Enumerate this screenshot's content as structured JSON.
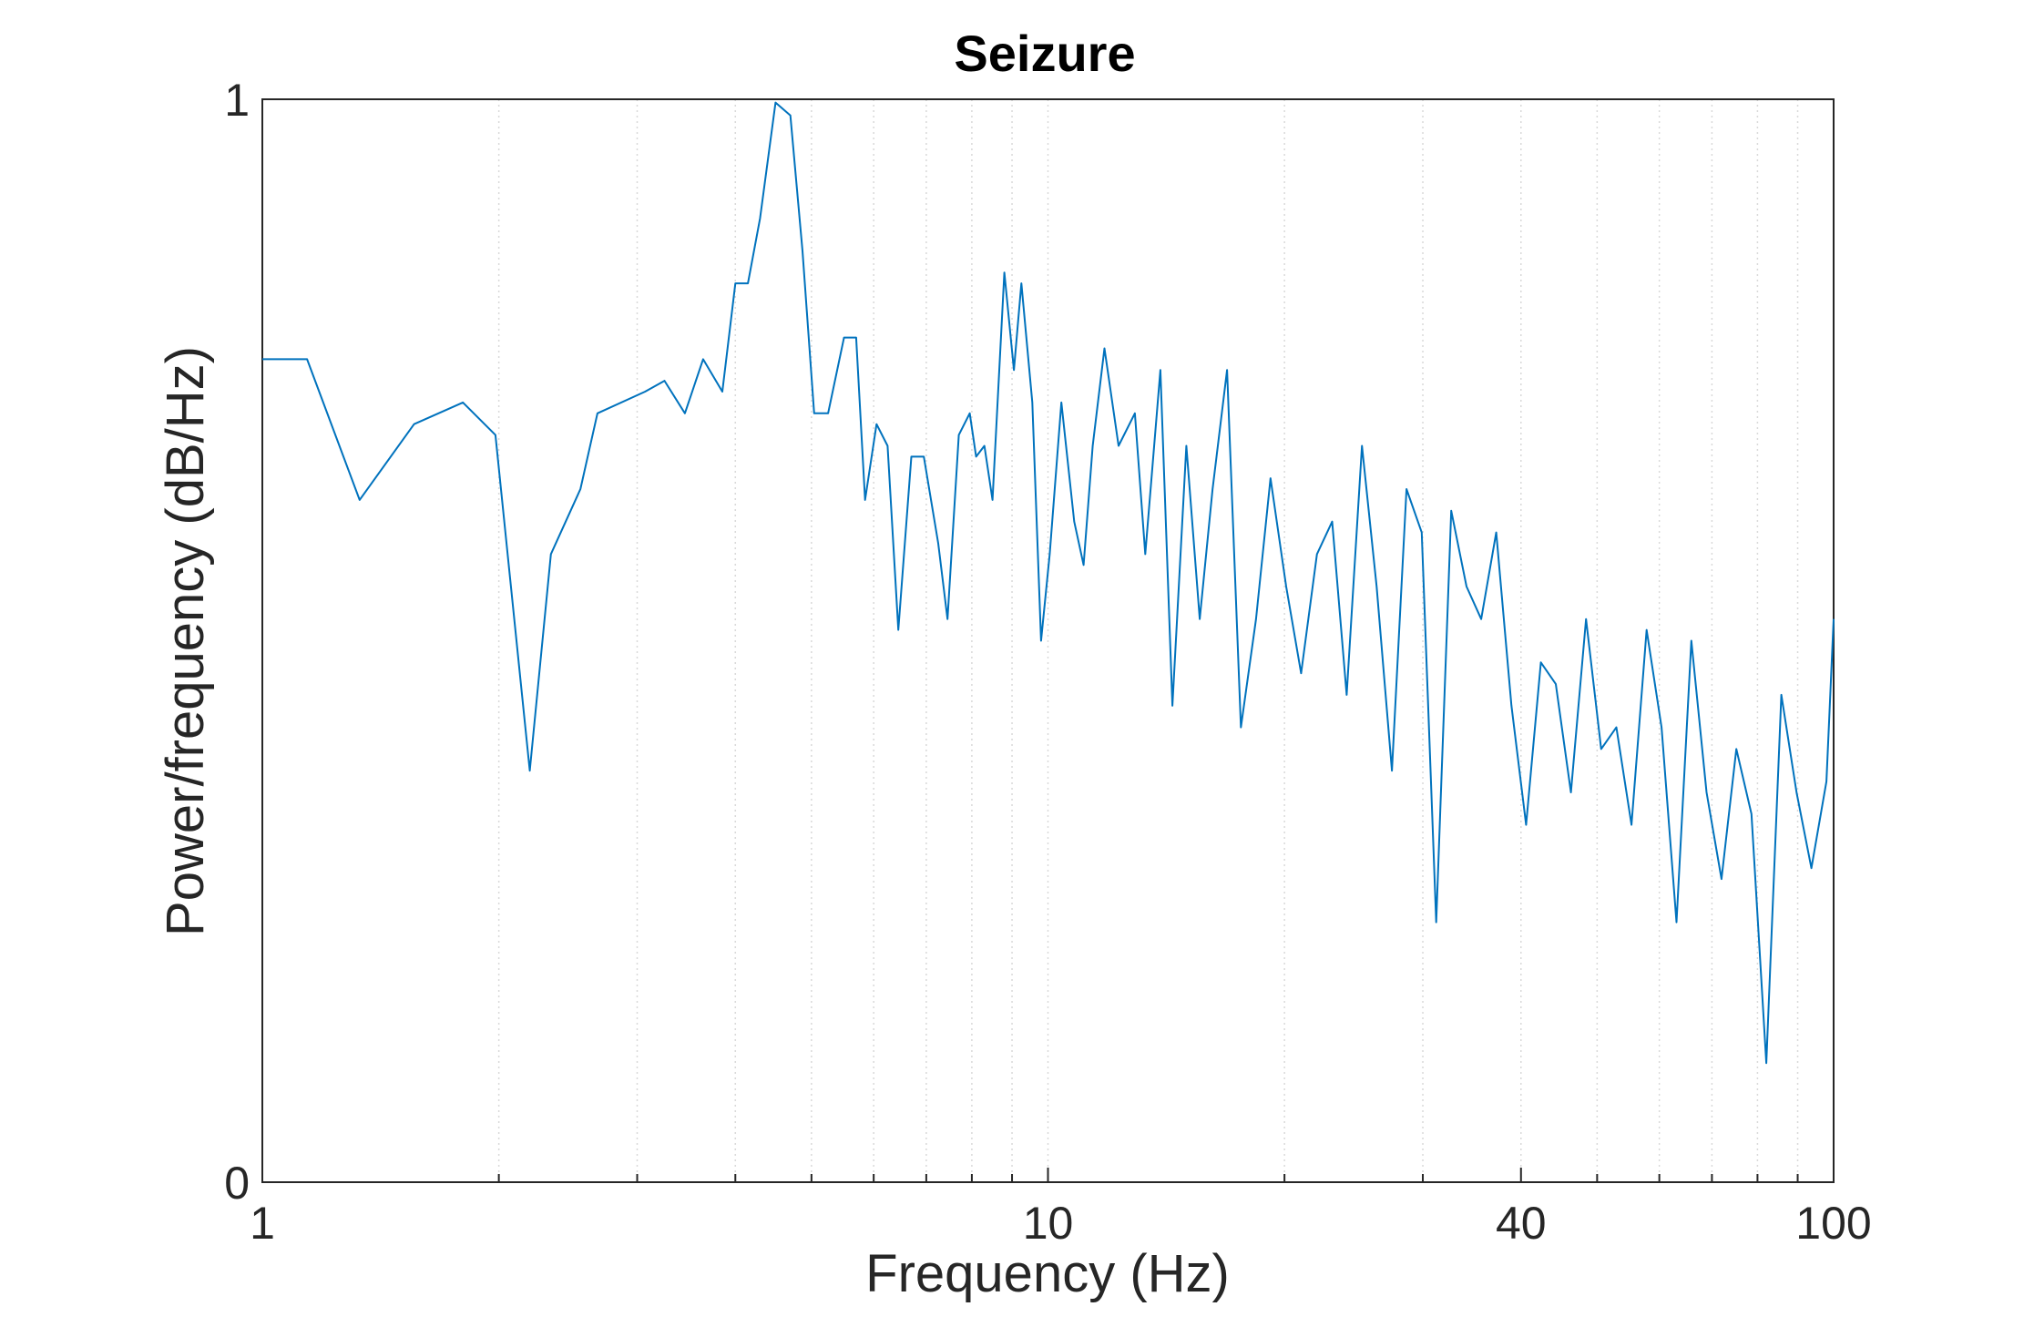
{
  "chart_data": {
    "type": "line",
    "title": "Seizure",
    "xlabel": "Frequency (Hz)",
    "ylabel": "Power/frequency (dB/Hz)",
    "xscale": "log",
    "xlim": [
      1,
      100
    ],
    "ylim": [
      0,
      1
    ],
    "xticks": [
      1,
      10,
      40,
      100
    ],
    "xtick_labels": [
      "1",
      "10",
      "40",
      "100"
    ],
    "yticks": [
      0,
      1
    ],
    "ytick_labels": [
      "0",
      "1"
    ],
    "grid": "vertical log grid (dotted)",
    "line_color": "#0072BD",
    "series": [
      {
        "x": [
          1.0,
          1.14,
          1.33,
          1.56,
          1.8,
          1.98,
          2.19,
          2.33,
          2.54,
          2.67,
          3.07,
          3.25,
          3.45,
          3.64,
          3.85,
          4.0,
          4.15,
          4.3,
          4.5,
          4.7,
          4.87,
          5.04,
          5.25,
          5.5,
          5.7,
          5.85,
          6.05,
          6.25,
          6.45,
          6.7,
          6.95,
          7.25,
          7.45,
          7.7,
          7.95,
          8.1,
          8.3,
          8.5,
          8.8,
          9.05,
          9.25,
          9.55,
          9.8,
          10.05,
          10.4,
          10.8,
          11.1,
          11.4,
          11.8,
          12.3,
          12.9,
          13.3,
          13.9,
          14.4,
          15.0,
          15.6,
          16.2,
          16.9,
          17.6,
          18.4,
          19.2,
          20.1,
          21.0,
          22.0,
          23.0,
          24.0,
          25.1,
          26.2,
          27.4,
          28.6,
          29.9,
          31.2,
          32.6,
          34.1,
          35.6,
          37.2,
          38.9,
          40.6,
          42.4,
          44.3,
          46.3,
          48.4,
          50.6,
          52.9,
          55.3,
          57.8,
          60.4,
          63.1,
          65.9,
          68.9,
          72.0,
          75.2,
          78.6,
          82.1,
          85.8,
          89.7,
          93.7,
          97.9,
          100.0
        ],
        "y": [
          0.76,
          0.76,
          0.63,
          0.7,
          0.72,
          0.69,
          0.38,
          0.58,
          0.64,
          0.71,
          0.73,
          0.74,
          0.71,
          0.76,
          0.73,
          0.83,
          0.83,
          0.89,
          0.997,
          0.985,
          0.86,
          0.71,
          0.71,
          0.78,
          0.78,
          0.63,
          0.7,
          0.68,
          0.51,
          0.67,
          0.67,
          0.59,
          0.52,
          0.69,
          0.71,
          0.67,
          0.68,
          0.63,
          0.84,
          0.75,
          0.83,
          0.72,
          0.5,
          0.58,
          0.72,
          0.61,
          0.57,
          0.68,
          0.77,
          0.68,
          0.71,
          0.58,
          0.75,
          0.44,
          0.68,
          0.52,
          0.64,
          0.75,
          0.42,
          0.52,
          0.65,
          0.55,
          0.47,
          0.58,
          0.61,
          0.45,
          0.68,
          0.55,
          0.38,
          0.64,
          0.6,
          0.24,
          0.62,
          0.55,
          0.52,
          0.6,
          0.44,
          0.33,
          0.48,
          0.46,
          0.36,
          0.52,
          0.4,
          0.42,
          0.33,
          0.51,
          0.42,
          0.24,
          0.5,
          0.36,
          0.28,
          0.4,
          0.34,
          0.11,
          0.45,
          0.36,
          0.29,
          0.37,
          0.52
        ]
      }
    ]
  }
}
